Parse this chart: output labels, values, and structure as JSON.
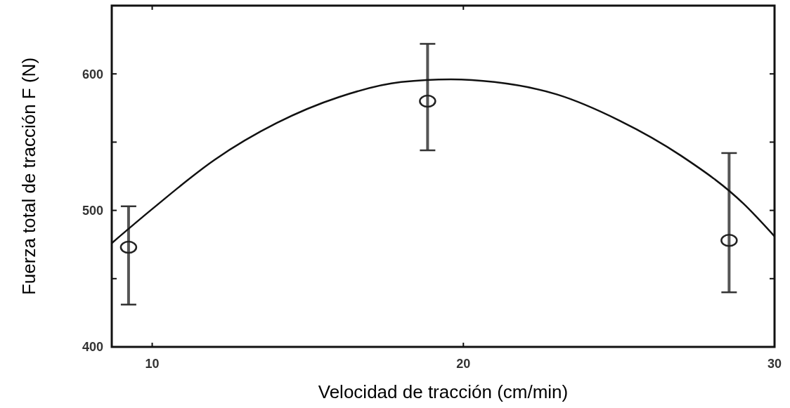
{
  "chart_data": {
    "type": "scatter",
    "xlabel": "Velocidad de tracción (cm/min)",
    "ylabel": "Fuerza total de tracción  F (N)",
    "xlim": [
      8.7,
      30
    ],
    "xticks": [
      10,
      20,
      30
    ],
    "ylim": [
      400,
      650
    ],
    "yticks": [
      400,
      {
        "value": 450,
        "label": null
      },
      500,
      {
        "value": 550,
        "label": null
      },
      600
    ],
    "marker": "circle",
    "series": [
      {
        "color": "#222222",
        "x": [
          9.24,
          18.85,
          28.54
        ],
        "values": [
          473,
          580,
          478
        ],
        "errors": [
          [
            431,
            503
          ],
          [
            544,
            622
          ],
          [
            440,
            542
          ]
        ]
      },
      {
        "type": "line",
        "color": "#111111",
        "marker": "none",
        "x": [
          8.7,
          10,
          12,
          14,
          16,
          18,
          19.6,
          21,
          23,
          25,
          27,
          29,
          30
        ],
        "values": [
          476,
          501,
          537,
          564,
          583,
          594,
          596,
          594,
          585,
          566,
          540,
          505,
          481
        ]
      }
    ]
  }
}
